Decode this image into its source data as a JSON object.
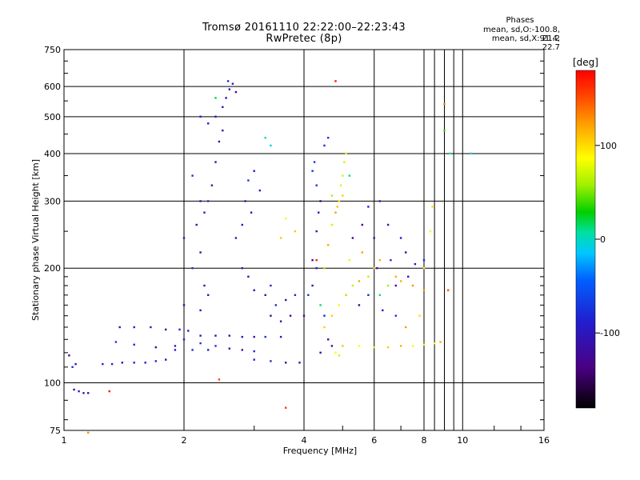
{
  "chart_data": {
    "type": "scatter",
    "title": "Tromsø 20161110 22:22:00–22:23:43",
    "subtitle": "RwPretec (8p)",
    "xlabel": "Frequency [MHz]",
    "ylabel": "Stationary phase Virtual Height [km]",
    "x_scale": "log",
    "y_scale": "log",
    "xlim": [
      1,
      16
    ],
    "ylim": [
      75,
      750
    ],
    "x_ticks": [
      1,
      2,
      4,
      6,
      8,
      10,
      16
    ],
    "y_ticks": [
      75,
      100,
      200,
      300,
      400,
      500,
      600,
      750
    ],
    "grid": true,
    "colorbar": {
      "label": "[deg]",
      "range": [
        -180,
        180
      ],
      "ticks": [
        100,
        0,
        -100
      ],
      "colormap": "rainbow: black→purple→blue→cyan→green→yellow→red"
    },
    "legend": {
      "title": "Phases",
      "o_label": "mean, sd,O:",
      "o_values": "-100.8, 21.2",
      "x_label": "mean, sd,X:",
      "x_values": "91.4, 22.7"
    },
    "series": [
      {
        "phase_mean": -100.8,
        "phase_sd": 21.2,
        "points": [
          [
            1.03,
            118
          ],
          [
            1.05,
            110
          ],
          [
            1.07,
            112
          ],
          [
            1.06,
            96
          ],
          [
            1.09,
            95
          ],
          [
            1.12,
            94
          ],
          [
            1.15,
            94
          ],
          [
            1.25,
            112
          ],
          [
            1.32,
            112
          ],
          [
            1.4,
            113
          ],
          [
            1.5,
            113
          ],
          [
            1.6,
            113
          ],
          [
            1.7,
            114
          ],
          [
            1.8,
            115
          ],
          [
            1.38,
            140
          ],
          [
            1.5,
            140
          ],
          [
            1.65,
            140
          ],
          [
            1.8,
            138
          ],
          [
            1.95,
            138
          ],
          [
            2.05,
            137
          ],
          [
            1.35,
            128
          ],
          [
            1.5,
            126
          ],
          [
            1.7,
            124
          ],
          [
            1.9,
            122
          ],
          [
            2.1,
            122
          ],
          [
            2.3,
            122
          ],
          [
            1.9,
            125
          ],
          [
            2.0,
            130
          ],
          [
            2.2,
            127
          ],
          [
            2.4,
            125
          ],
          [
            2.6,
            123
          ],
          [
            2.8,
            122
          ],
          [
            3.0,
            121
          ],
          [
            2.2,
            133
          ],
          [
            2.4,
            133
          ],
          [
            2.6,
            133
          ],
          [
            2.8,
            132
          ],
          [
            3.0,
            132
          ],
          [
            3.2,
            132
          ],
          [
            3.5,
            132
          ],
          [
            3.0,
            115
          ],
          [
            3.3,
            114
          ],
          [
            3.6,
            113
          ],
          [
            3.9,
            113
          ],
          [
            2.2,
            155
          ],
          [
            2.3,
            170
          ],
          [
            2.25,
            180
          ],
          [
            2.0,
            160
          ],
          [
            2.1,
            200
          ],
          [
            2.2,
            220
          ],
          [
            2.0,
            240
          ],
          [
            2.15,
            260
          ],
          [
            2.25,
            280
          ],
          [
            2.3,
            300
          ],
          [
            2.35,
            330
          ],
          [
            2.4,
            380
          ],
          [
            2.45,
            430
          ],
          [
            2.5,
            460
          ],
          [
            2.4,
            500
          ],
          [
            2.5,
            530
          ],
          [
            2.55,
            560
          ],
          [
            2.6,
            590
          ],
          [
            2.65,
            610
          ],
          [
            2.7,
            580
          ],
          [
            2.58,
            620
          ],
          [
            2.2,
            300
          ],
          [
            2.1,
            350
          ],
          [
            2.2,
            500
          ],
          [
            2.3,
            480
          ],
          [
            2.7,
            240
          ],
          [
            2.8,
            260
          ],
          [
            2.85,
            300
          ],
          [
            2.9,
            340
          ],
          [
            3.0,
            360
          ],
          [
            3.1,
            320
          ],
          [
            2.95,
            280
          ],
          [
            2.8,
            200
          ],
          [
            2.9,
            190
          ],
          [
            3.0,
            175
          ],
          [
            3.2,
            170
          ],
          [
            3.3,
            180
          ],
          [
            3.4,
            160
          ],
          [
            3.6,
            165
          ],
          [
            3.8,
            170
          ],
          [
            3.7,
            150
          ],
          [
            3.5,
            145
          ],
          [
            3.3,
            150
          ],
          [
            4.0,
            150
          ],
          [
            4.1,
            170
          ],
          [
            4.2,
            180
          ],
          [
            4.3,
            200
          ],
          [
            4.2,
            210
          ],
          [
            4.3,
            250
          ],
          [
            4.35,
            280
          ],
          [
            4.4,
            300
          ],
          [
            4.3,
            330
          ],
          [
            4.2,
            360
          ],
          [
            4.25,
            380
          ],
          [
            4.5,
            420
          ],
          [
            4.6,
            440
          ],
          [
            4.5,
            150
          ],
          [
            4.6,
            130
          ],
          [
            4.7,
            125
          ],
          [
            4.4,
            120
          ],
          [
            5.3,
            240
          ],
          [
            5.6,
            260
          ],
          [
            5.8,
            290
          ],
          [
            6.0,
            240
          ],
          [
            6.2,
            300
          ],
          [
            6.5,
            260
          ],
          [
            7.0,
            240
          ],
          [
            6.1,
            200
          ],
          [
            6.6,
            210
          ],
          [
            7.2,
            220
          ],
          [
            7.6,
            205
          ],
          [
            8.0,
            210
          ],
          [
            6.8,
            180
          ],
          [
            7.3,
            190
          ],
          [
            5.5,
            160
          ],
          [
            5.8,
            170
          ],
          [
            6.3,
            155
          ],
          [
            6.8,
            150
          ]
        ]
      },
      {
        "phase_mean": 91.4,
        "phase_sd": 22.7,
        "points": [
          [
            4.5,
            200
          ],
          [
            4.6,
            230
          ],
          [
            4.7,
            260
          ],
          [
            4.8,
            280
          ],
          [
            4.9,
            300
          ],
          [
            5.0,
            310
          ],
          [
            4.95,
            330
          ],
          [
            5.0,
            350
          ],
          [
            5.05,
            380
          ],
          [
            5.1,
            400
          ],
          [
            4.7,
            310
          ],
          [
            4.85,
            290
          ],
          [
            4.5,
            140
          ],
          [
            4.7,
            150
          ],
          [
            4.9,
            160
          ],
          [
            5.1,
            170
          ],
          [
            5.3,
            180
          ],
          [
            5.5,
            185
          ],
          [
            5.8,
            190
          ],
          [
            6.0,
            200
          ],
          [
            6.2,
            210
          ],
          [
            6.5,
            180
          ],
          [
            6.8,
            190
          ],
          [
            7.0,
            185
          ],
          [
            7.5,
            180
          ],
          [
            8.0,
            175
          ],
          [
            5.0,
            125
          ],
          [
            5.5,
            125
          ],
          [
            6.0,
            124
          ],
          [
            6.5,
            124
          ],
          [
            7.0,
            125
          ],
          [
            7.5,
            125
          ],
          [
            8.0,
            126
          ],
          [
            8.5,
            127
          ],
          [
            8.8,
            128
          ],
          [
            8.0,
            200
          ],
          [
            8.3,
            250
          ],
          [
            8.4,
            290
          ],
          [
            3.8,
            250
          ],
          [
            3.6,
            270
          ],
          [
            3.5,
            240
          ],
          [
            4.8,
            120
          ],
          [
            4.9,
            118
          ],
          [
            5.2,
            210
          ],
          [
            5.6,
            220
          ],
          [
            7.2,
            140
          ],
          [
            7.8,
            150
          ]
        ]
      },
      {
        "phase_mean": 150,
        "phase_sd": 20,
        "points": [
          [
            4.8,
            620
          ],
          [
            1.3,
            95
          ],
          [
            9.0,
            540
          ],
          [
            3.6,
            86
          ],
          [
            1.15,
            74
          ],
          [
            9.2,
            175
          ],
          [
            2.45,
            102
          ],
          [
            4.3,
            210
          ]
        ]
      },
      {
        "phase_mean": 10,
        "phase_sd": 20,
        "points": [
          [
            9.0,
            460
          ],
          [
            9.3,
            400
          ],
          [
            10.5,
            400
          ],
          [
            3.2,
            440
          ],
          [
            3.3,
            420
          ],
          [
            2.4,
            560
          ],
          [
            5.2,
            350
          ],
          [
            4.4,
            160
          ],
          [
            6.2,
            170
          ]
        ]
      }
    ]
  }
}
